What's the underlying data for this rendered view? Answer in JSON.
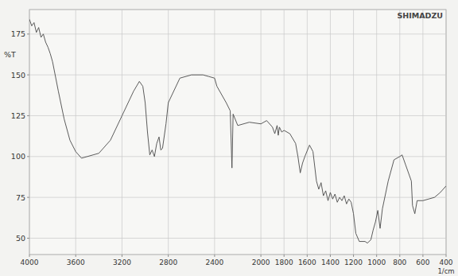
{
  "chart_data": {
    "type": "line",
    "brand": "SHIMADZU",
    "y_label": "%T",
    "x_label": "1/cm",
    "color": "#4a4a4a",
    "grid": true,
    "marker": "none",
    "line_style": "solid",
    "xlim": [
      4000,
      400
    ],
    "xticks": [
      4000,
      3600,
      3200,
      2800,
      2400,
      2000,
      1800,
      1600,
      1400,
      1200,
      1000,
      800,
      600,
      400
    ],
    "ylim": [
      40,
      190
    ],
    "yticks": [
      50,
      75,
      100,
      125,
      150,
      175
    ],
    "x": [
      4000,
      3980,
      3960,
      3940,
      3920,
      3900,
      3880,
      3860,
      3840,
      3820,
      3800,
      3750,
      3700,
      3650,
      3600,
      3550,
      3500,
      3450,
      3400,
      3300,
      3200,
      3100,
      3050,
      3020,
      3000,
      2980,
      2960,
      2940,
      2920,
      2900,
      2880,
      2865,
      2850,
      2820,
      2800,
      2700,
      2600,
      2500,
      2450,
      2400,
      2380,
      2300,
      2265,
      2250,
      2240,
      2200,
      2100,
      2000,
      1950,
      1900,
      1880,
      1860,
      1850,
      1840,
      1820,
      1800,
      1750,
      1700,
      1680,
      1660,
      1640,
      1620,
      1580,
      1550,
      1520,
      1500,
      1480,
      1460,
      1440,
      1420,
      1400,
      1380,
      1360,
      1340,
      1320,
      1300,
      1280,
      1260,
      1240,
      1220,
      1200,
      1180,
      1150,
      1100,
      1080,
      1050,
      1030,
      1010,
      990,
      970,
      950,
      900,
      850,
      800,
      780,
      750,
      700,
      690,
      670,
      650,
      600,
      550,
      500,
      450,
      400
    ],
    "y": [
      184,
      180,
      182,
      176,
      179,
      173,
      175,
      170,
      167,
      163,
      158,
      140,
      123,
      110,
      103,
      99,
      100,
      101,
      102,
      110,
      125,
      140,
      146,
      143,
      133,
      115,
      101,
      104,
      100,
      108,
      112,
      104,
      105,
      120,
      133,
      148,
      150,
      150,
      149,
      148,
      143,
      133,
      128,
      93,
      126,
      119,
      121,
      120,
      122,
      118,
      114,
      119,
      113,
      118,
      115,
      116,
      114,
      108,
      100,
      90,
      96,
      100,
      107,
      103,
      85,
      80,
      84,
      76,
      79,
      73,
      78,
      74,
      77,
      72,
      75,
      73,
      76,
      71,
      74,
      72,
      65,
      53,
      48,
      48,
      47,
      49,
      55,
      60,
      67,
      56,
      68,
      85,
      98,
      100,
      101,
      95,
      85,
      70,
      65,
      73,
      73,
      74,
      75,
      78,
      82
    ]
  }
}
